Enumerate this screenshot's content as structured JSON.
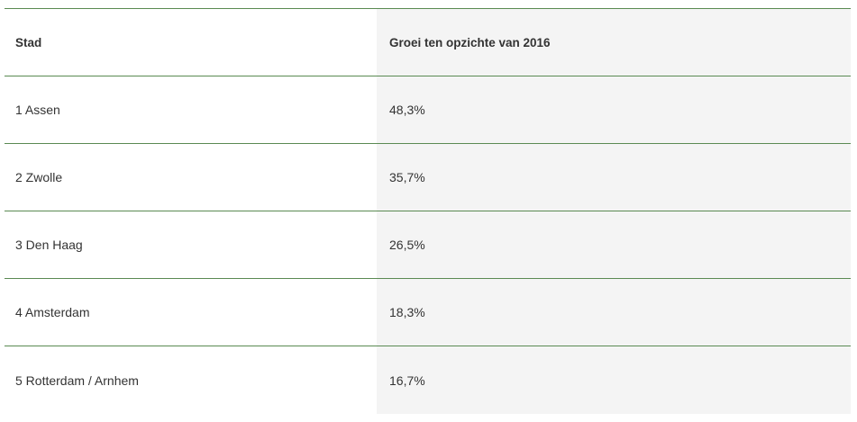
{
  "table": {
    "headers": {
      "city": "Stad",
      "growth": "Groei ten opzichte van 2016"
    },
    "rows": [
      {
        "city": "1 Assen",
        "growth": "48,3%"
      },
      {
        "city": "2 Zwolle",
        "growth": "35,7%"
      },
      {
        "city": "3 Den Haag",
        "growth": "26,5%"
      },
      {
        "city": "4 Amsterdam",
        "growth": "18,3%"
      },
      {
        "city": "5 Rotterdam / Arnhem",
        "growth": "16,7%"
      }
    ]
  },
  "colors": {
    "divider": "#5a8a52",
    "column_shade": "#f4f4f4",
    "text": "#333333"
  }
}
